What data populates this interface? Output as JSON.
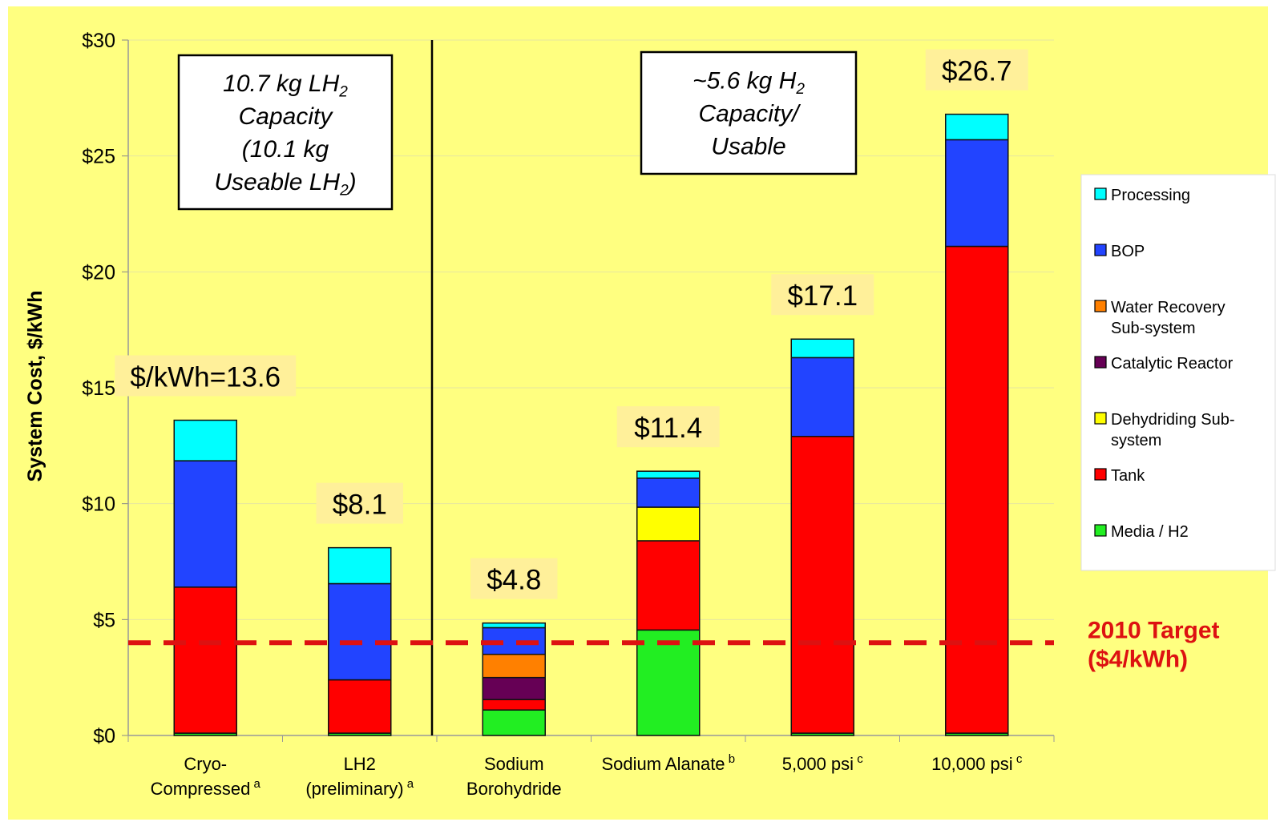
{
  "colors": {
    "background": "#FFFF80",
    "gridline": "#E6E6A0",
    "target_line": "#DD1111",
    "label_highlight": "#FFF09A"
  },
  "chart_data": {
    "type": "bar",
    "stacked": true,
    "ylabel": "System Cost, $/kWh",
    "ylim": [
      0,
      30
    ],
    "yticks": [
      {
        "value": 0,
        "label": "$0"
      },
      {
        "value": 5,
        "label": "$5"
      },
      {
        "value": 10,
        "label": "$10"
      },
      {
        "value": 15,
        "label": "$15"
      },
      {
        "value": 20,
        "label": "$20"
      },
      {
        "value": 25,
        "label": "$25"
      },
      {
        "value": 30,
        "label": "$30"
      }
    ],
    "categories": [
      {
        "lines": [
          "Cryo-",
          "Compressed"
        ],
        "sup": "a"
      },
      {
        "lines": [
          "LH2",
          "(preliminary)"
        ],
        "sup": "a"
      },
      {
        "lines": [
          "Sodium",
          "Borohydride"
        ],
        "sup": ""
      },
      {
        "lines": [
          "Sodium Alanate"
        ],
        "sup": "b"
      },
      {
        "lines": [
          "5,000 psi"
        ],
        "sup": "c"
      },
      {
        "lines": [
          "10,000 psi"
        ],
        "sup": "c"
      }
    ],
    "series": [
      {
        "name": "Media / H2",
        "color": "#22EE22",
        "values": [
          0.1,
          0.1,
          1.1,
          4.55,
          0.1,
          0.1
        ]
      },
      {
        "name": "Tank",
        "color": "#FF0000",
        "values": [
          6.3,
          2.3,
          0.45,
          3.85,
          12.8,
          21.0
        ]
      },
      {
        "name": "Dehydriding Sub-system",
        "color": "#FFFF00",
        "values": [
          0,
          0,
          0,
          1.45,
          0,
          0
        ]
      },
      {
        "name": "Catalytic Reactor",
        "color": "#660055",
        "values": [
          0,
          0,
          0.95,
          0,
          0,
          0
        ]
      },
      {
        "name": "Water Recovery Sub-system",
        "color": "#FF8000",
        "values": [
          0,
          0,
          1.0,
          0,
          0,
          0
        ]
      },
      {
        "name": "BOP",
        "color": "#2244FF",
        "values": [
          5.45,
          4.15,
          1.15,
          1.25,
          3.4,
          4.6
        ]
      },
      {
        "name": "Processing",
        "color": "#00FFFF",
        "values": [
          1.75,
          1.55,
          0.2,
          0.3,
          0.8,
          1.1
        ]
      }
    ],
    "legend_order": [
      "Processing",
      "BOP",
      "Water Recovery Sub-system",
      "Catalytic Reactor",
      "Dehydriding Sub-system",
      "Tank",
      "Media / H2"
    ],
    "legend_display": [
      [
        "Processing"
      ],
      [
        "BOP"
      ],
      [
        "Water Recovery",
        "Sub-system"
      ],
      [
        "Catalytic Reactor"
      ],
      [
        "Dehydriding Sub-",
        "system"
      ],
      [
        "Tank"
      ],
      [
        "Media / H2"
      ]
    ],
    "legend_position": "right",
    "total_labels": [
      "$/kWh=13.6",
      "$8.1",
      "$4.8",
      "$11.4",
      "$17.1",
      "$26.7"
    ],
    "target": {
      "value": 4,
      "label_lines": [
        "2010 Target",
        "($4/kWh)"
      ]
    },
    "annotations": {
      "left_box": [
        "10.7 kg LH|2",
        "Capacity",
        "(10.1 kg",
        "Useable LH|2|)"
      ],
      "right_box": [
        "~5.6 kg H|2",
        "Capacity/",
        "Usable"
      ]
    },
    "gridlines": true
  }
}
